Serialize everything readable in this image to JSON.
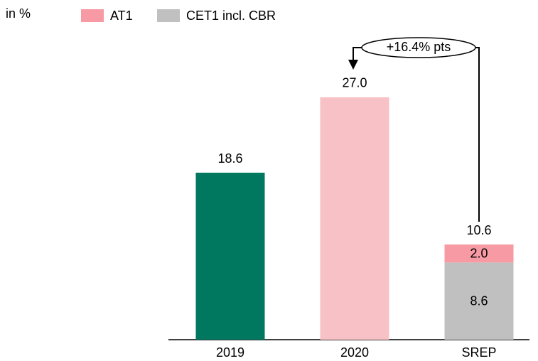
{
  "chart_data": {
    "type": "bar",
    "unit_label": "in %",
    "annotation": "+16.4% pts",
    "categories": [
      "2019",
      "2020",
      "SREP"
    ],
    "values": [
      18.6,
      27.0,
      10.6
    ],
    "value_labels": [
      "18.6",
      "27.0",
      "10.6"
    ],
    "colors": [
      "#00775f",
      "#f7c1c6",
      null
    ],
    "series": [
      {
        "name": "AT1",
        "color": "#f79aa4",
        "values": [
          null,
          null,
          2.0
        ],
        "value_labels": [
          null,
          null,
          "2.0"
        ]
      },
      {
        "name": "CET1 incl. CBR",
        "color": "#c0c0c0",
        "values": [
          null,
          null,
          8.6
        ]
      }
    ],
    "ylim": [
      0,
      30
    ]
  }
}
